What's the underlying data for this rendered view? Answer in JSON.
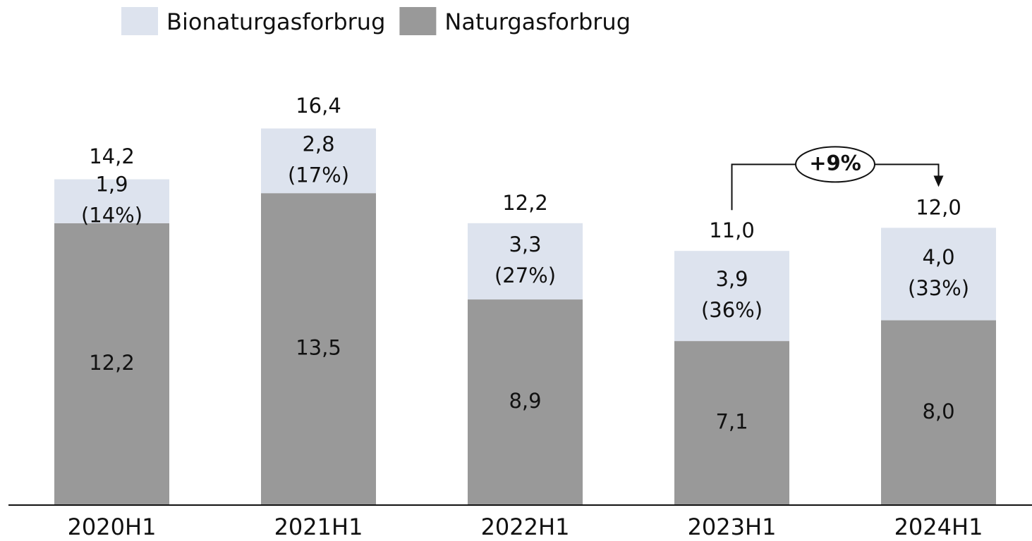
{
  "chart_data": {
    "type": "stacked_bar",
    "categories": [
      "2020H1",
      "2021H1",
      "2022H1",
      "2023H1",
      "2024H1"
    ],
    "series": [
      {
        "name": "Naturgasforbrug",
        "color": "#999999",
        "values": [
          12.2,
          13.5,
          8.9,
          7.1,
          8.0
        ],
        "value_labels": [
          "12,2",
          "13,5",
          "8,9",
          "7,1",
          "8,0"
        ]
      },
      {
        "name": "Bionaturgasforbrug",
        "color": "#dde3ee",
        "values": [
          1.9,
          2.8,
          3.3,
          3.9,
          4.0
        ],
        "value_labels": [
          "1,9",
          "2,8",
          "3,3",
          "3,9",
          "4,0"
        ],
        "share_labels": [
          "(14%)",
          "(17%)",
          "(27%)",
          "(36%)",
          "(33%)"
        ]
      }
    ],
    "totals": {
      "values": [
        14.2,
        16.4,
        12.2,
        11.0,
        12.0
      ],
      "value_labels": [
        "14,2",
        "16,4",
        "12,2",
        "11,0",
        "12,0"
      ]
    },
    "legend_order": [
      "Bionaturgasforbrug",
      "Naturgasforbrug"
    ],
    "annotation": "+9%",
    "ylim": [
      0,
      20
    ]
  }
}
